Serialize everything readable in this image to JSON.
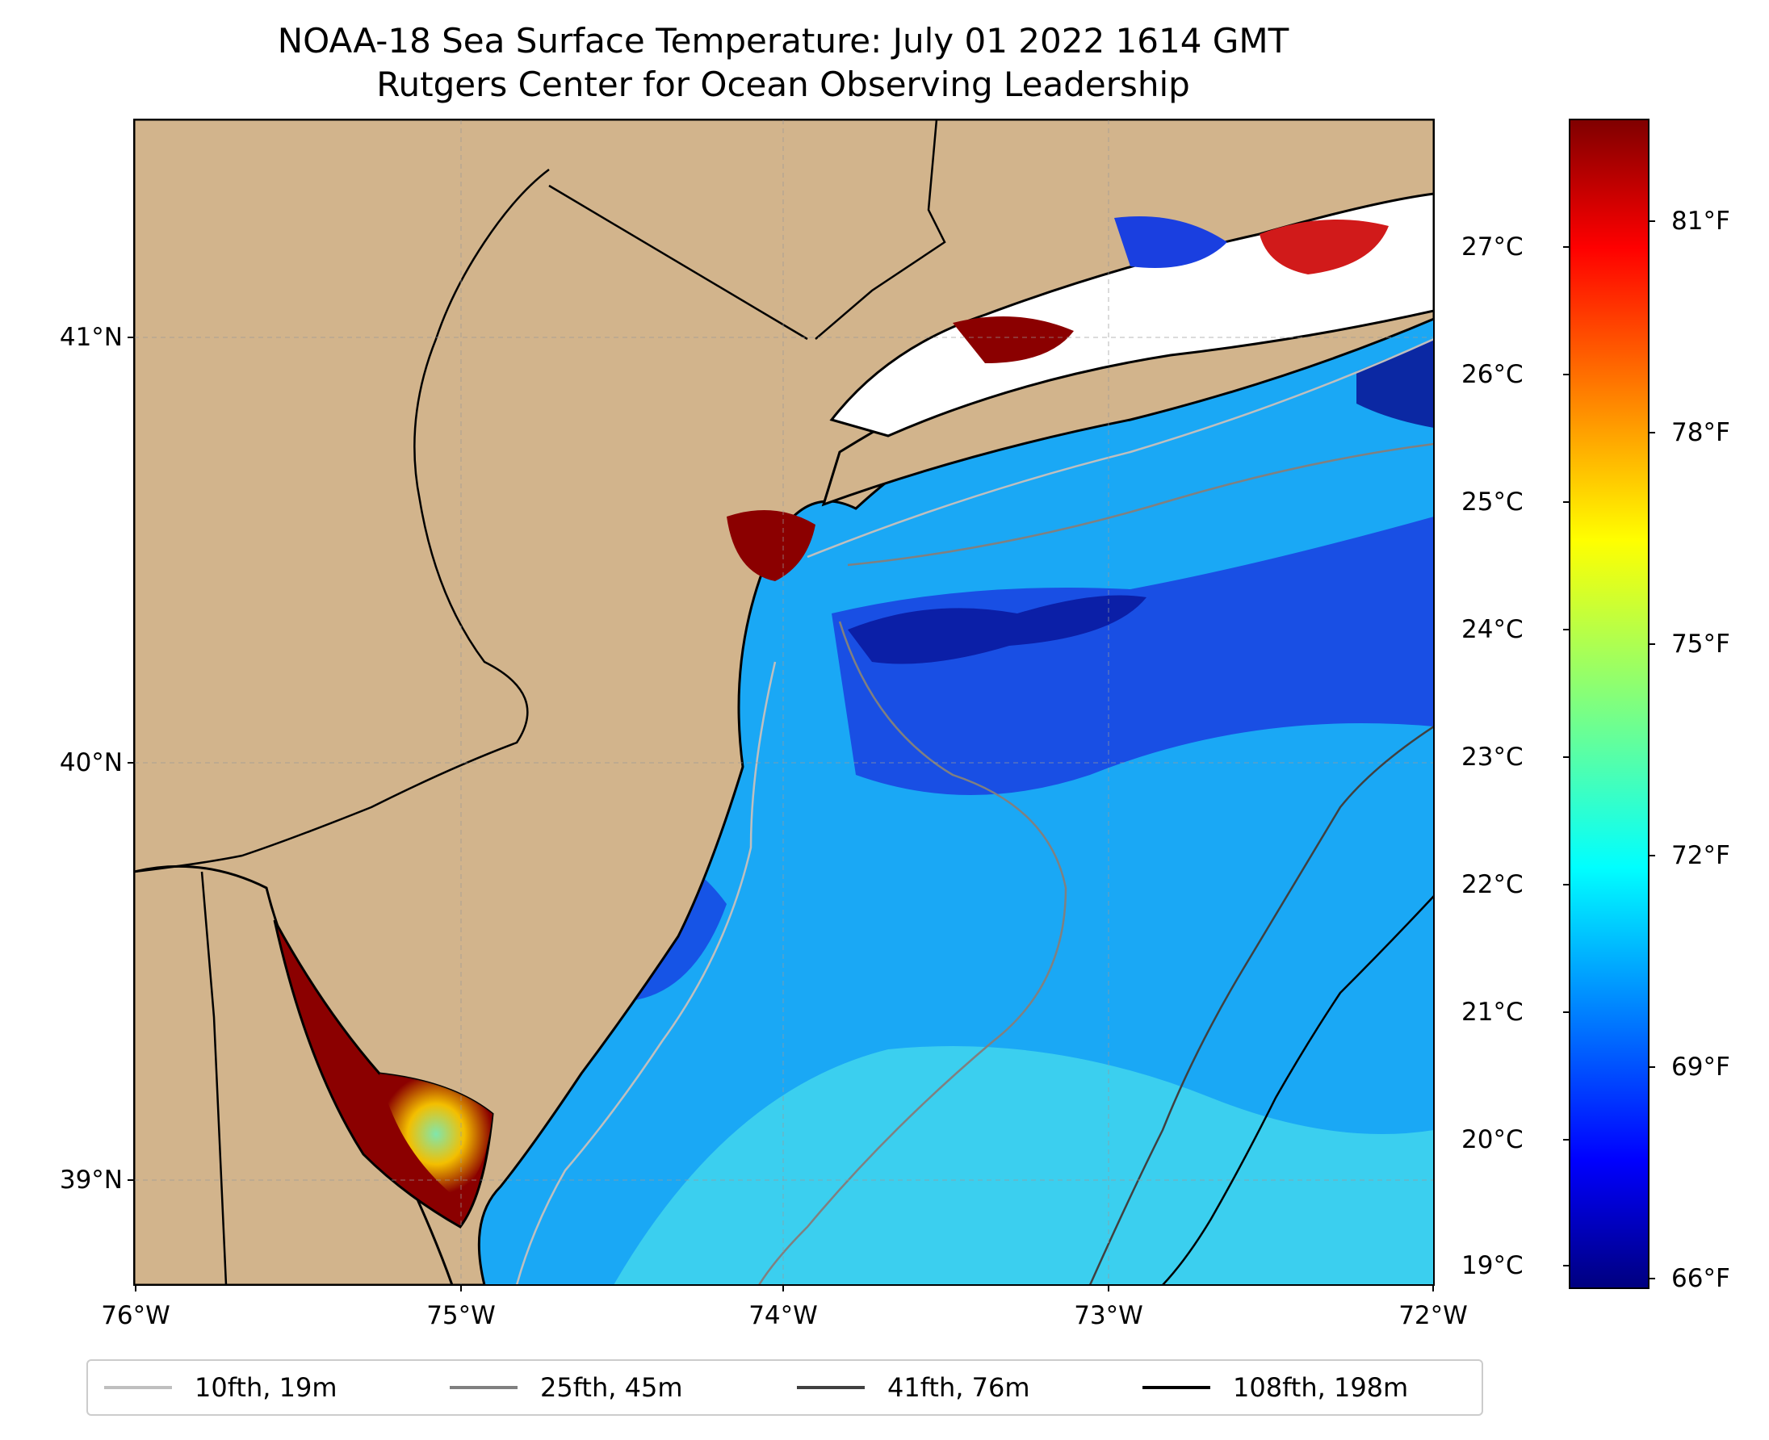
{
  "figure": {
    "title": "NOAA-18 Sea Surface Temperature: July 01 2022 1614 GMT",
    "subtitle": "Rutgers Center for Ocean Observing Leadership"
  },
  "map": {
    "lon_range": [
      -76,
      -72
    ],
    "lat_range": [
      38.75,
      41.55
    ],
    "lon_ticks": [
      "76°W",
      "75°W",
      "74°W",
      "73°W",
      "72°W"
    ],
    "lat_ticks": [
      "41°N",
      "40°N",
      "39°N"
    ],
    "gridlines": true,
    "land_color": "#d2b48c",
    "coastline_color": "#000000"
  },
  "colorbar": {
    "colormap": "jet",
    "celsius_ticks": [
      "27°C",
      "26°C",
      "25°C",
      "24°C",
      "23°C",
      "22°C",
      "21°C",
      "20°C",
      "19°C"
    ],
    "fahrenheit_ticks": [
      "81°F",
      "78°F",
      "75°F",
      "72°F",
      "69°F",
      "66°F"
    ],
    "range_f": [
      65.8,
      82.1
    ]
  },
  "legend": {
    "placement": "bottom",
    "entries": [
      {
        "label": "10fth, 19m",
        "color": "#bfbfbf"
      },
      {
        "label": "25fth, 45m",
        "color": "#808080"
      },
      {
        "label": "41fth, 76m",
        "color": "#404040"
      },
      {
        "label": "108fth, 198m",
        "color": "#000000"
      }
    ]
  }
}
